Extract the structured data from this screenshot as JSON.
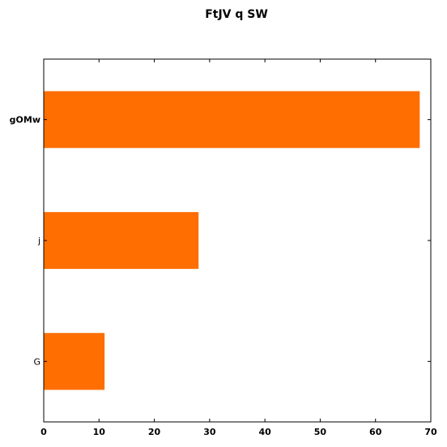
{
  "chart_data": {
    "type": "bar",
    "orientation": "horizontal",
    "title": "FtJV q SW",
    "xlabel": "",
    "ylabel": "",
    "categories": [
      "gOMw",
      "j",
      "G"
    ],
    "values": [
      68,
      28,
      11
    ],
    "xlim": [
      0,
      70
    ],
    "xticks": [
      0,
      10,
      20,
      30,
      40,
      50,
      60,
      70
    ],
    "grid": false,
    "bar_color": "#ff6e00"
  }
}
